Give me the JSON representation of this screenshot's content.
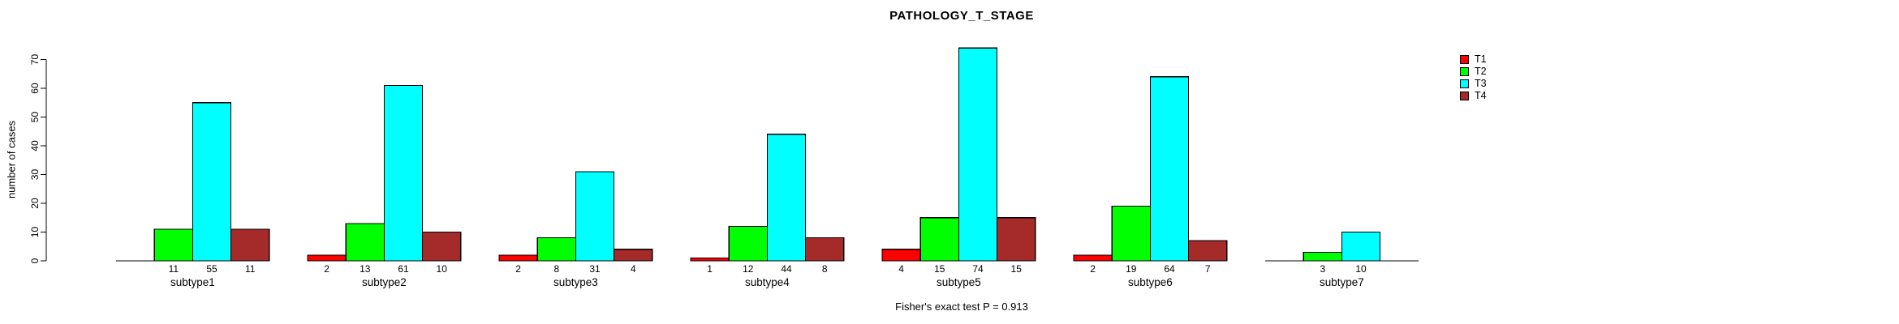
{
  "title": "PATHOLOGY_T_STAGE",
  "ylabel": "number of cases",
  "footer": "Fisher's exact test P = 0.913",
  "legend": [
    {
      "label": "T1",
      "color": "#FF0000"
    },
    {
      "label": "T2",
      "color": "#00FF00"
    },
    {
      "label": "T3",
      "color": "#00FFFF"
    },
    {
      "label": "T4",
      "color": "#A52A2A"
    }
  ],
  "chart_data": {
    "type": "bar",
    "title": "PATHOLOGY_T_STAGE",
    "xlabel": "",
    "ylabel": "number of cases",
    "categories": [
      "subtype1",
      "subtype2",
      "subtype3",
      "subtype4",
      "subtype5",
      "subtype6",
      "subtype7"
    ],
    "series": [
      {
        "name": "T1",
        "color": "#FF0000",
        "values": [
          0,
          2,
          2,
          1,
          4,
          2,
          0
        ]
      },
      {
        "name": "T2",
        "color": "#00FF00",
        "values": [
          11,
          13,
          8,
          12,
          15,
          19,
          3
        ]
      },
      {
        "name": "T3",
        "color": "#00FFFF",
        "values": [
          55,
          61,
          31,
          44,
          74,
          64,
          10
        ]
      },
      {
        "name": "T4",
        "color": "#A52A2A",
        "values": [
          11,
          10,
          4,
          8,
          15,
          7,
          0
        ]
      }
    ],
    "bar_value_labels": true,
    "zero_bars_drawn_as_baseline": true,
    "yticks": [
      0,
      10,
      20,
      30,
      40,
      50,
      60,
      70
    ],
    "ylim": [
      0,
      74
    ],
    "grid": false,
    "legend_position": "right-outside",
    "annotation": "Fisher's exact test P = 0.913"
  }
}
